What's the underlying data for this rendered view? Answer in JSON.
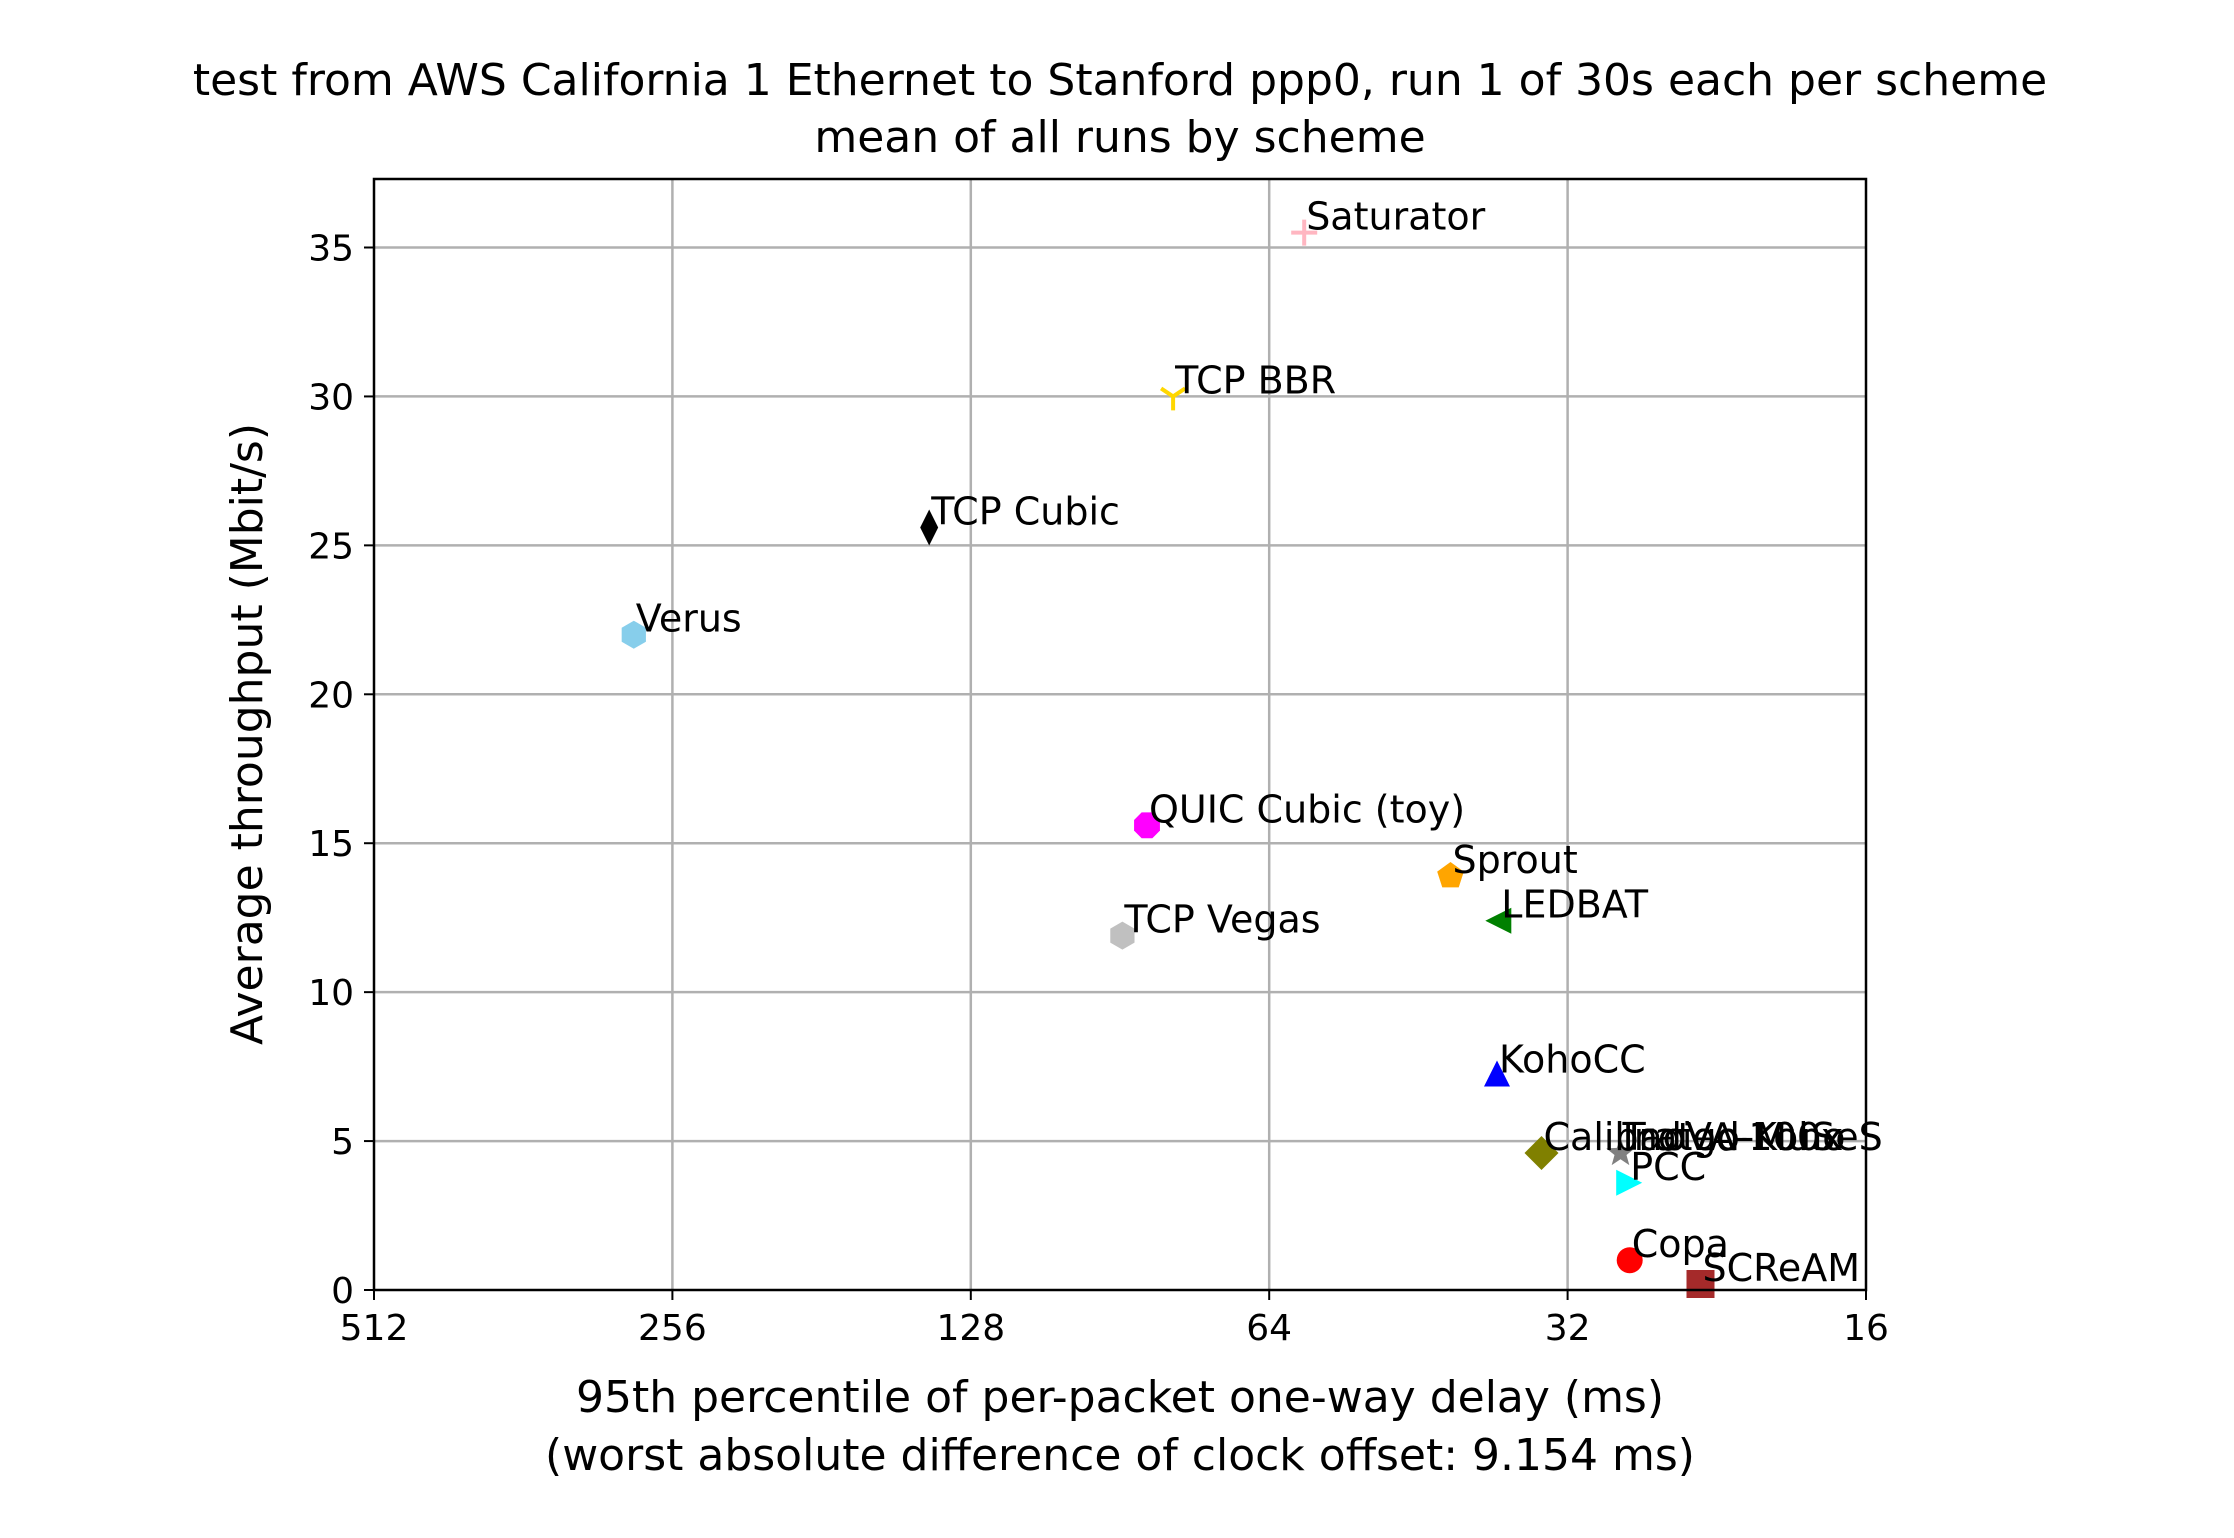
{
  "chart_data": {
    "type": "scatter",
    "title": "test from AWS California 1 Ethernet to Stanford ppp0, run 1 of 30s each per scheme",
    "subtitle": "mean of all runs by scheme",
    "xlabel": "95th percentile of per-packet one-way delay (ms)",
    "xlabel2": "(worst absolute difference of clock offset: 9.154 ms)",
    "ylabel": "Average throughput (Mbit/s)",
    "x_scale": "log2",
    "x_inverted": true,
    "xlim": [
      512,
      16
    ],
    "ylim": [
      0,
      37.3
    ],
    "x_ticks": [
      512,
      256,
      128,
      64,
      32,
      16
    ],
    "x_tick_labels": [
      "512",
      "256",
      "128",
      "64",
      "32",
      "16"
    ],
    "y_ticks": [
      0,
      5,
      10,
      15,
      20,
      25,
      30,
      35
    ],
    "y_tick_labels": [
      "0",
      "5",
      "10",
      "15",
      "20",
      "25",
      "30",
      "35"
    ],
    "grid": true,
    "points": [
      {
        "label": "Saturator",
        "x": 59,
        "y": 35.5,
        "marker": "plus",
        "color": "#ffb6c1"
      },
      {
        "label": "TCP BBR",
        "x": 80,
        "y": 30,
        "marker": "tri-down",
        "color": "#ffd700"
      },
      {
        "label": "TCP Cubic",
        "x": 141,
        "y": 25.6,
        "marker": "thin-diamond",
        "color": "#000000"
      },
      {
        "label": "Verus",
        "x": 280,
        "y": 22,
        "marker": "hexagon",
        "color": "#87ceeb"
      },
      {
        "label": "QUIC Cubic (toy)",
        "x": 85,
        "y": 15.6,
        "marker": "octagon",
        "color": "#ff00ff"
      },
      {
        "label": "Sprout",
        "x": 42,
        "y": 13.9,
        "marker": "pentagon",
        "color": "#ffa500"
      },
      {
        "label": "LEDBAT",
        "x": 37.5,
        "y": 12.4,
        "marker": "triangle-left",
        "color": "#008000"
      },
      {
        "label": "TCP Vegas",
        "x": 90,
        "y": 11.9,
        "marker": "hexagon",
        "color": "#c0c0c0"
      },
      {
        "label": "KohoCC",
        "x": 37.7,
        "y": 7.2,
        "marker": "triangle-up",
        "color": "#0000ff"
      },
      {
        "label": "Indigo-MuSeS",
        "x": 28.3,
        "y": 4.6,
        "marker": "star",
        "color": "#808080"
      },
      {
        "label": "TaoVA-100x",
        "x": 28.3,
        "y": 4.6,
        "marker": "none",
        "color": "#808080"
      },
      {
        "label": "Calibrated Koho",
        "x": 34,
        "y": 4.6,
        "marker": "diamond",
        "color": "#808000"
      },
      {
        "label": "PCC",
        "x": 27.8,
        "y": 3.6,
        "marker": "triangle-right",
        "color": "#00ffff"
      },
      {
        "label": "Copa",
        "x": 27.7,
        "y": 1.0,
        "marker": "circle",
        "color": "#ff0000"
      },
      {
        "label": "SCReAM",
        "x": 23.5,
        "y": 0.2,
        "marker": "square",
        "color": "#a52a2a"
      }
    ]
  }
}
